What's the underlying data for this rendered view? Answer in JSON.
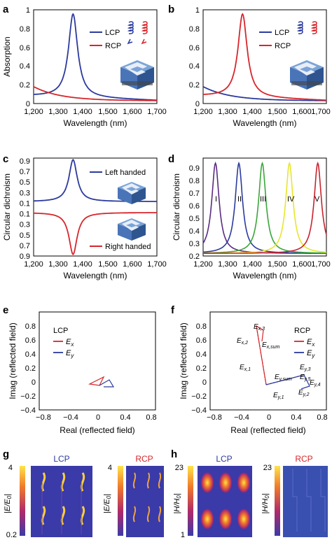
{
  "colors": {
    "lcp": "#2b3a9e",
    "rcp": "#d7262b",
    "purple": "#5a2a82",
    "blue": "#2b3a9e",
    "green": "#3aa63a",
    "yellow": "#e6e62e",
    "red": "#c8232c"
  },
  "panels": {
    "a": {
      "label": "a",
      "xlabel": "Wavelength (nm)",
      "ylabel": "Absorption",
      "xticks": [
        "1,200",
        "1,300",
        "1,400",
        "1,500",
        "1,600",
        "1,700"
      ],
      "yticks": [
        "0",
        "0.2",
        "0.4",
        "0.6",
        "0.8",
        "1"
      ],
      "legend": [
        "LCP",
        "RCP"
      ]
    },
    "b": {
      "label": "b",
      "xlabel": "Wavelength (nm)",
      "xticks": [
        "1,200",
        "1,300",
        "1,400",
        "1,500",
        "1,600",
        "1,700"
      ],
      "yticks": [
        "0",
        "0.2",
        "0.4",
        "0.6",
        "0.8",
        "1"
      ],
      "legend": [
        "LCP",
        "RCP"
      ]
    },
    "c": {
      "label": "c",
      "xlabel": "Wavelength (nm)",
      "ylabel": "Circular dichroism",
      "xticks": [
        "1,200",
        "1,300",
        "1,400",
        "1,500",
        "1,600",
        "1,700"
      ],
      "yticks": [
        "0.9",
        "0.7",
        "0.5",
        "0.3",
        "0.1",
        "0.1",
        "0.3",
        "0.5",
        "0.7",
        "0.9"
      ],
      "legend": [
        "Left handed",
        "Right handed"
      ]
    },
    "d": {
      "label": "d",
      "xlabel": "Wavelength (nm)",
      "ylabel": "Circular dichroism",
      "xticks": [
        "1,200",
        "1,300",
        "1,400",
        "1,500",
        "1,600",
        "1,700"
      ],
      "yticks": [
        "0.9",
        "0.8",
        "0.7",
        "0.6",
        "0.5",
        "0.4",
        "0.3",
        "0.2"
      ],
      "peaks": [
        "I",
        "II",
        "III",
        "IV",
        "V"
      ]
    },
    "e": {
      "label": "e",
      "xlabel": "Real (reflected field)",
      "ylabel": "Imag (reflected field)",
      "xticks": [
        "−0.8",
        "−0.4",
        "0",
        "0.4",
        "0.8"
      ],
      "yticks": [
        "0.8",
        "0.6",
        "0.4",
        "0.2",
        "0",
        "−0.2",
        "−0.4"
      ],
      "legend_title": "LCP",
      "legend": [
        "E",
        "E"
      ],
      "legend_sub": [
        "x",
        "y"
      ]
    },
    "f": {
      "label": "f",
      "xlabel": "Real (reflected field)",
      "ylabel": "Imag (reflected field)",
      "xticks": [
        "−0.8",
        "−0.4",
        "0",
        "0.4",
        "0.8"
      ],
      "yticks": [
        "0.8",
        "0.6",
        "0.4",
        "0.2",
        "0",
        "−0.2",
        "−0.4"
      ],
      "legend_title": "RCP",
      "legend": [
        "E",
        "E"
      ],
      "legend_sub": [
        "x",
        "y"
      ],
      "annotations": [
        {
          "main": "E",
          "sub": "x,3"
        },
        {
          "main": "E",
          "sub": "x,2"
        },
        {
          "main": "E",
          "sub": "x,sum"
        },
        {
          "main": "E",
          "sub": "x,1"
        },
        {
          "main": "E",
          "sub": "y,sum"
        },
        {
          "main": "E",
          "sub": "y,3"
        },
        {
          "main": "E",
          "sub": "y,5"
        },
        {
          "main": "E",
          "sub": "y,4"
        },
        {
          "main": "E",
          "sub": "y,1"
        },
        {
          "main": "E",
          "sub": "y,2"
        }
      ]
    },
    "g": {
      "label": "g",
      "maps": [
        "LCP",
        "RCP"
      ],
      "cbar_max": "4",
      "cbar_min": "0.2",
      "cbar_label": "|E/E",
      "cbar_label_sub": "0",
      "cbar_label_end": "|"
    },
    "h": {
      "label": "h",
      "maps": [
        "LCP",
        "RCP"
      ],
      "cbar_max": "23",
      "cbar_min": "1",
      "cbar_label": "|H/H",
      "cbar_label_sub": "0",
      "cbar_label_end": "|"
    }
  },
  "chart_data": [
    {
      "type": "line",
      "title": "",
      "panel": "a",
      "xlabel": "Wavelength (nm)",
      "ylabel": "Absorption",
      "xlim": [
        1200,
        1700
      ],
      "ylim": [
        0,
        1
      ],
      "series": [
        {
          "name": "LCP",
          "peak_x": 1360,
          "peak_y": 0.97,
          "width": 45,
          "baseline": 0.08
        },
        {
          "name": "RCP",
          "start_y": 0.18,
          "end_y": 0.03
        }
      ]
    },
    {
      "type": "line",
      "title": "",
      "panel": "b",
      "xlabel": "Wavelength (nm)",
      "xlim": [
        1200,
        1700
      ],
      "ylim": [
        0,
        1
      ],
      "series": [
        {
          "name": "LCP",
          "start_y": 0.18,
          "end_y": 0.03
        },
        {
          "name": "RCP",
          "peak_x": 1360,
          "peak_y": 0.97,
          "width": 45,
          "baseline": 0.08
        }
      ]
    },
    {
      "type": "line",
      "title": "",
      "panel": "c",
      "xlabel": "Wavelength (nm)",
      "ylabel": "Circular dichroism",
      "xlim": [
        1200,
        1700
      ],
      "ylim": [
        -0.9,
        0.9
      ],
      "series": [
        {
          "name": "Left handed",
          "peak_x": 1360,
          "peak_y": 0.87,
          "width": 40,
          "baseline": 0.1
        },
        {
          "name": "Right handed",
          "peak_x": 1360,
          "peak_y": -0.87,
          "width": 40,
          "baseline": -0.1
        }
      ]
    },
    {
      "type": "line",
      "title": "",
      "panel": "d",
      "xlabel": "Wavelength (nm)",
      "ylabel": "Circular dichroism",
      "xlim": [
        1200,
        1700
      ],
      "ylim": [
        0.15,
        0.92
      ],
      "series": [
        {
          "name": "I",
          "peak_x": 1250,
          "peak_y": 0.88
        },
        {
          "name": "II",
          "peak_x": 1345,
          "peak_y": 0.88
        },
        {
          "name": "III",
          "peak_x": 1440,
          "peak_y": 0.88
        },
        {
          "name": "IV",
          "peak_x": 1550,
          "peak_y": 0.88
        },
        {
          "name": "V",
          "peak_x": 1665,
          "peak_y": 0.88
        }
      ]
    }
  ]
}
